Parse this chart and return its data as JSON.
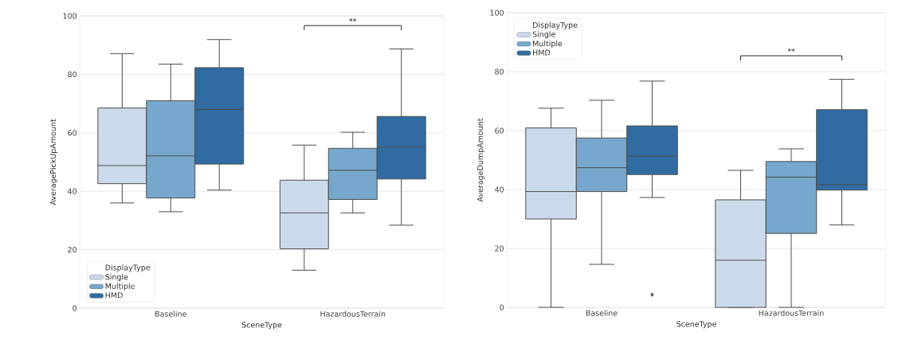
{
  "chart_data": [
    {
      "type": "box",
      "xlabel": "SceneType",
      "ylabel": "AveragePickUpAmount",
      "legend_title": "DisplayType",
      "legend": "bottom left",
      "grid": "y",
      "categories": [
        "Baseline",
        "HazardousTerrain"
      ],
      "ylim": [
        0,
        100
      ],
      "yticks": [
        0,
        20,
        40,
        60,
        80,
        100
      ],
      "annotations": [
        "**"
      ],
      "series": [
        {
          "name": "Single",
          "color": "#cbdaea",
          "boxes": [
            {
              "low": 36.0,
              "q1": 42.6,
              "median": 48.8,
              "q3": 68.5,
              "high": 87.1
            },
            {
              "low": 13.0,
              "q1": 20.3,
              "median": 32.6,
              "q3": 43.8,
              "high": 55.8
            }
          ]
        },
        {
          "name": "Multiple",
          "color": "#75a8cc",
          "boxes": [
            {
              "low": 33.0,
              "q1": 37.7,
              "median": 52.1,
              "q3": 71.0,
              "high": 83.5
            },
            {
              "low": 32.6,
              "q1": 37.2,
              "median": 47.2,
              "q3": 54.7,
              "high": 60.2
            }
          ]
        },
        {
          "name": "HMD",
          "color": "#306ca2",
          "boxes": [
            {
              "low": 40.4,
              "q1": 49.3,
              "median": 68.0,
              "q3": 82.3,
              "high": 91.9
            },
            {
              "low": 28.4,
              "q1": 44.2,
              "median": 55.1,
              "q3": 65.6,
              "high": 88.7
            }
          ]
        }
      ]
    },
    {
      "type": "box",
      "xlabel": "SceneType",
      "ylabel": "AverageDumpAmount",
      "legend_title": "DisplayType",
      "legend": "top left",
      "grid": "y",
      "categories": [
        "Baseline",
        "HazardousTerrain"
      ],
      "ylim": [
        0,
        100
      ],
      "yticks": [
        0,
        20,
        40,
        60,
        80,
        100
      ],
      "annotations": [
        "**"
      ],
      "series": [
        {
          "name": "Single",
          "color": "#cbdaea",
          "boxes": [
            {
              "low": 0,
              "q1": 30.0,
              "median": 39.3,
              "q3": 60.9,
              "high": 67.6
            },
            {
              "low": 0,
              "q1": 0,
              "median": 16.0,
              "q3": 36.5,
              "high": 46.5
            }
          ]
        },
        {
          "name": "Multiple",
          "color": "#75a8cc",
          "boxes": [
            {
              "low": 14.6,
              "q1": 39.3,
              "median": 47.4,
              "q3": 57.5,
              "high": 70.3
            },
            {
              "low": 0,
              "q1": 25.1,
              "median": 44.2,
              "q3": 49.5,
              "high": 53.8
            }
          ]
        },
        {
          "name": "HMD",
          "color": "#306ca2",
          "boxes": [
            {
              "low": 37.3,
              "q1": 45.1,
              "median": 51.3,
              "q3": 61.6,
              "high": 76.8,
              "outliers": [
                4.3
              ]
            },
            {
              "low": 28.0,
              "q1": 39.8,
              "median": 41.7,
              "q3": 67.1,
              "high": 77.4
            }
          ]
        }
      ]
    }
  ]
}
